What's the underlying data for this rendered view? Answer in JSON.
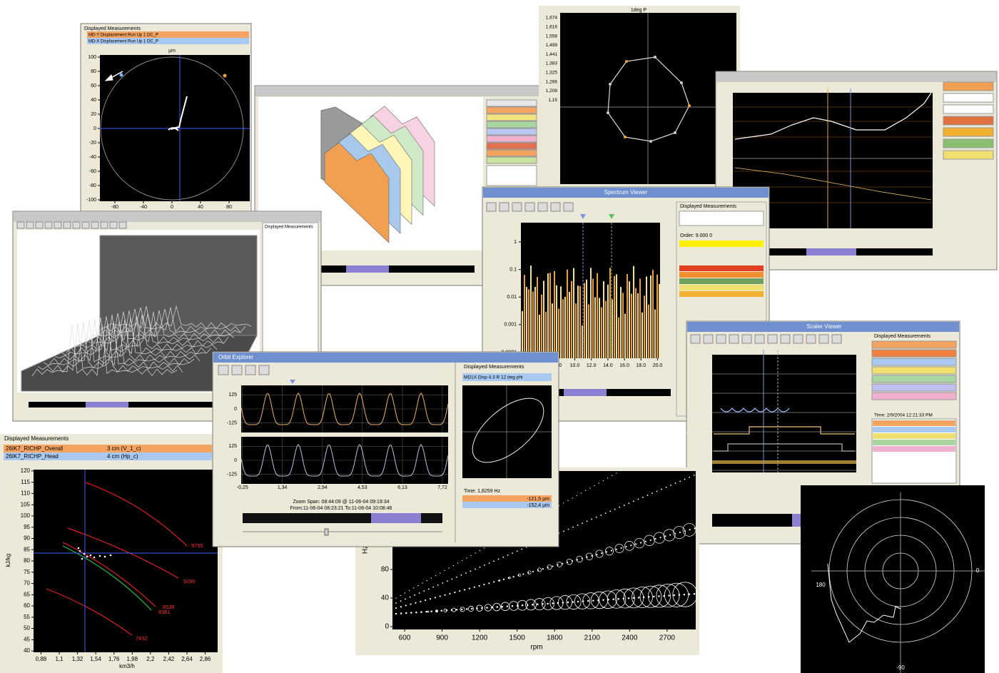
{
  "polar_orbit": {
    "header": "Displayed Measurements",
    "rows": [
      "MD-Y Displacement    Run Up    1 DC_P",
      "MD-X Displacement    Run Up    1 DC_P"
    ],
    "unit": "µm",
    "ylim": [
      -100,
      100
    ],
    "yticks": [
      100,
      80,
      60,
      40,
      20,
      0,
      -20,
      -40,
      -60,
      -80,
      -100
    ],
    "xlim": [
      -100,
      100
    ],
    "xticks": [
      -80,
      -40,
      0,
      40,
      80
    ]
  },
  "octagon_plot": {
    "title": "1deg P",
    "ytick_labels": [
      "1,674",
      "1,616",
      "1,558",
      "1,499",
      "1,441",
      "1,383",
      "1,325",
      "1,266",
      "1,208",
      "1,15"
    ]
  },
  "spectrum_viewer": {
    "title": "Spectrum Viewer",
    "header": "Displayed Measurements",
    "order": "Order: 9.000 0",
    "log_y": true,
    "ylim": [
      6e-05,
      5
    ],
    "yticks": [
      1,
      0.1,
      0.01,
      0.001,
      0.0001
    ],
    "xlim": [
      3.5,
      20.3
    ],
    "xticks": [
      {
        "value": 8,
        "label": "8.0"
      },
      {
        "value": 10,
        "label": "10.0"
      },
      {
        "value": 12,
        "label": "12.0"
      },
      {
        "value": 14,
        "label": "14.0"
      },
      {
        "value": 16,
        "label": "16.0"
      },
      {
        "value": 18,
        "label": "18.0"
      },
      {
        "value": 20,
        "label": "20.0"
      }
    ]
  },
  "waterfall_window": {
    "header": "Displayed Measurements"
  },
  "scaler_viewer": {
    "title": "Scaler Viewer",
    "header": "Displayed Measurements",
    "time": "Time: 2/9/2004 12:21:33 PM"
  },
  "orbit_explorer": {
    "title": "Orbit Explorer",
    "header": "Displayed Measurements",
    "measurement": "MD1X Disp 4.3   R   12 deg phi",
    "ylim": [
      -210,
      210
    ],
    "yticks": [
      125,
      0,
      -125
    ],
    "xlim": [
      -0.3,
      7.95
    ],
    "xticks": [
      {
        "value": -0.25,
        "label": "-0,25"
      },
      {
        "value": 1.34,
        "label": "1,34"
      },
      {
        "value": 2.94,
        "label": "2,94"
      },
      {
        "value": 4.53,
        "label": "4,53"
      },
      {
        "value": 6.13,
        "label": "6,13"
      },
      {
        "value": 7.72,
        "label": "7,72"
      }
    ],
    "zoom_span": "Zoom Span: 08:44:09 @ 11-06-04 09:19:34",
    "range": "From:11-06-04 08:23:21  To:11-06-04 10:08:46",
    "time": "Time: 1,8259 Hz",
    "readings": [
      "-121,5 µm",
      "-152,4 µm"
    ]
  },
  "pump_curve": {
    "header": "Displayed Measurements",
    "rows": [
      "26IK7_RICHP_Overall",
      "26IK7_RICHP_Head"
    ],
    "row_units": [
      "3 cm (V_1_c)",
      "4 cm (Hp_c)"
    ],
    "ylabel": "kJ/kg",
    "xlabel": "km3/h",
    "ylim": [
      39.4,
      120.6
    ],
    "yticks": [
      120,
      115,
      110,
      105,
      100,
      95,
      90,
      85,
      80,
      75,
      70,
      65,
      60,
      55,
      50,
      45,
      40
    ],
    "xlim": [
      0.79,
      3.01
    ],
    "xticks": [
      {
        "value": 0.88,
        "label": "0,88"
      },
      {
        "value": 1.1,
        "label": "1,1"
      },
      {
        "value": 1.32,
        "label": "1,32"
      },
      {
        "value": 1.54,
        "label": "1,54"
      },
      {
        "value": 1.76,
        "label": "1,76"
      },
      {
        "value": 1.98,
        "label": "1,98"
      },
      {
        "value": 2.2,
        "label": "2,2"
      },
      {
        "value": 2.42,
        "label": "2,42"
      },
      {
        "value": 2.64,
        "label": "2,64"
      },
      {
        "value": 2.86,
        "label": "2,86"
      }
    ],
    "curve_labels": [
      "9755",
      "9290",
      "8538",
      "8361",
      "7432"
    ]
  },
  "campbell": {
    "ylabel": "Hz",
    "xlabel": "rpm",
    "ylim": [
      -4,
      218
    ],
    "yticks": [
      0,
      40,
      80
    ],
    "xlim": [
      503,
      2929
    ],
    "xticks": [
      600,
      900,
      1200,
      1500,
      1800,
      2100,
      2400,
      2700
    ]
  },
  "polar_small": {
    "labels": [
      "0",
      "-90",
      "180"
    ]
  }
}
